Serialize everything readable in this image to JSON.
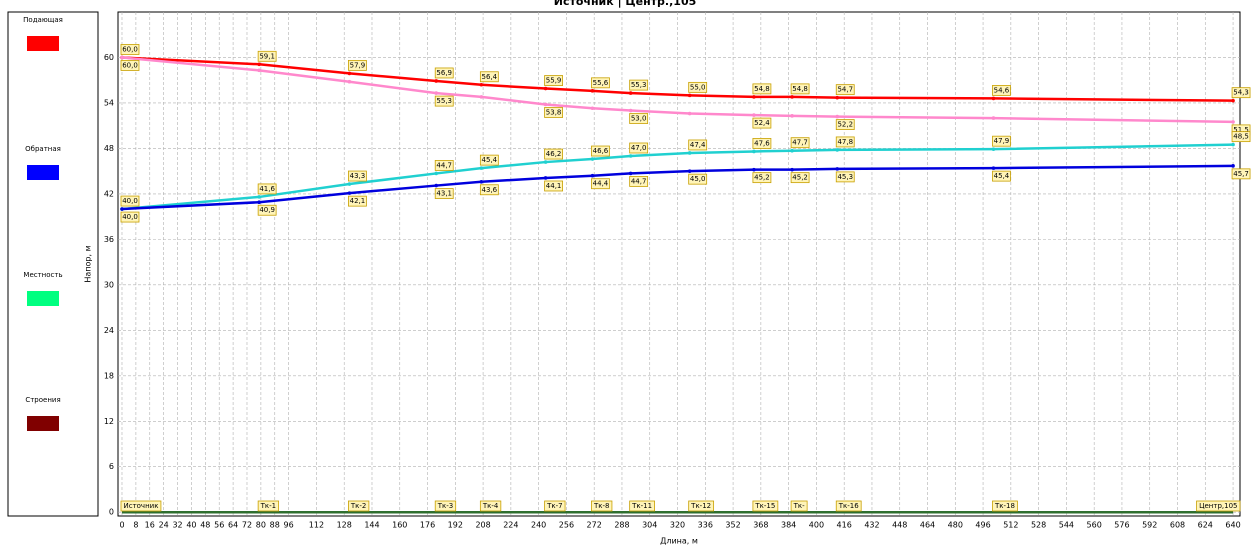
{
  "chart_data": {
    "type": "line",
    "title": "Источник | Центр.,105",
    "x_label": "Длина, м",
    "y_label": "Напор, м",
    "xlim": [
      -2.3,
      644
    ],
    "ylim": [
      -0.5,
      66
    ],
    "xticks": [
      0,
      8,
      16,
      24,
      32,
      40,
      48,
      56,
      64,
      72,
      80,
      88,
      96,
      112,
      128,
      144,
      160,
      176,
      192,
      208,
      224,
      240,
      256,
      272,
      288,
      304,
      320,
      336,
      352,
      368,
      384,
      400,
      416,
      432,
      448,
      464,
      480,
      496,
      512,
      528,
      544,
      560,
      576,
      592,
      608,
      624,
      640
    ],
    "yticks": [
      0,
      6,
      12,
      18,
      24,
      30,
      36,
      42,
      48,
      54,
      60
    ],
    "grid": true,
    "legend": [
      {
        "name": "Подающая",
        "color": "#ff0000"
      },
      {
        "name": "Обратная",
        "color": "#0000ff"
      },
      {
        "name": "Местность",
        "color": "#00ff80"
      },
      {
        "name": "Строения",
        "color": "#800000"
      }
    ],
    "x": [
      0,
      79,
      131,
      181,
      207,
      244,
      271,
      293,
      327,
      364,
      386,
      412,
      502,
      640
    ],
    "node_labels": [
      "Источник",
      "Тк-1",
      "Тк-2",
      "Тк-3",
      "Тк-4",
      "Тк-7",
      "Тк-8",
      "Тк-11",
      "Тк-12",
      "Тк-15",
      "Тк-",
      "Тк-16",
      "Тк-18",
      "Центр,105"
    ],
    "series": [
      {
        "color": "#ff0000",
        "values": [
          60.0,
          59.1,
          57.9,
          56.9,
          56.4,
          55.9,
          55.6,
          55.3,
          55.0,
          54.8,
          54.8,
          54.7,
          54.6,
          54.3
        ],
        "value_labels": [
          "60,0",
          "59,1",
          "57,9",
          "56,9",
          "56,4",
          "55,9",
          "55,6",
          "55,3",
          "55,0",
          "54,8",
          "54,8",
          "54,7",
          "54,6",
          "54,3"
        ]
      },
      {
        "color": "#ff88cc",
        "values": [
          60.0,
          58.3,
          56.8,
          55.3,
          54.8,
          53.8,
          53.3,
          53.0,
          52.6,
          52.4,
          52.3,
          52.2,
          52.0,
          51.5
        ],
        "value_labels": [
          "60,0",
          null,
          null,
          "55,3",
          null,
          "53,8",
          null,
          "53,0",
          null,
          "52,4",
          null,
          "52,2",
          null,
          "51,5"
        ]
      },
      {
        "color": "#20d0d0",
        "values": [
          40.0,
          41.6,
          43.3,
          44.7,
          45.4,
          46.2,
          46.6,
          47.0,
          47.4,
          47.6,
          47.7,
          47.8,
          47.9,
          48.5
        ],
        "value_labels": [
          "40,0",
          "41,6",
          "43,3",
          "44,7",
          "45,4",
          "46,2",
          "46,6",
          "47,0",
          "47,4",
          "47,6",
          "47,7",
          "47,8",
          "47,9",
          "48,5"
        ]
      },
      {
        "color": "#0000dd",
        "values": [
          40.0,
          40.9,
          42.1,
          43.1,
          43.6,
          44.1,
          44.4,
          44.7,
          45.0,
          45.2,
          45.2,
          45.3,
          45.4,
          45.7
        ],
        "value_labels": [
          "40,0",
          "40,9",
          "42,1",
          "43,1",
          "43,6",
          "44,1",
          "44,4",
          "44,7",
          "45,0",
          "45,2",
          "45,2",
          "45,3",
          "45,4",
          "45,7"
        ]
      },
      {
        "color": "#2f6f2f",
        "values": [
          0,
          0,
          0,
          0,
          0,
          0,
          0,
          0,
          0,
          0,
          0,
          0,
          0,
          0
        ]
      }
    ]
  }
}
